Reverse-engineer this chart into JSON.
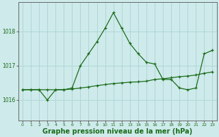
{
  "line1_x": [
    0,
    1,
    2,
    3,
    4,
    5,
    6,
    7,
    8,
    9,
    10,
    11,
    12,
    13,
    14,
    15,
    16,
    17,
    18,
    19,
    20,
    21,
    22,
    23
  ],
  "line1_y": [
    1016.3,
    1016.3,
    1016.3,
    1016.0,
    1016.3,
    1016.3,
    1016.35,
    1017.0,
    1017.35,
    1017.7,
    1018.1,
    1018.55,
    1018.1,
    1017.65,
    1017.35,
    1017.1,
    1017.05,
    1016.6,
    1016.6,
    1016.35,
    1016.3,
    1016.35,
    1017.35,
    1017.45
  ],
  "line2_x": [
    0,
    1,
    2,
    3,
    4,
    5,
    6,
    7,
    8,
    9,
    10,
    11,
    12,
    13,
    14,
    15,
    16,
    17,
    18,
    19,
    20,
    21,
    22,
    23
  ],
  "line2_y": [
    1016.3,
    1016.3,
    1016.3,
    1016.3,
    1016.3,
    1016.3,
    1016.32,
    1016.35,
    1016.38,
    1016.42,
    1016.45,
    1016.48,
    1016.5,
    1016.52,
    1016.53,
    1016.55,
    1016.6,
    1016.62,
    1016.65,
    1016.68,
    1016.7,
    1016.73,
    1016.78,
    1016.82
  ],
  "line_color": "#1a6b1a",
  "bg_color": "#ceeaea",
  "grid_color": "#aad4d4",
  "ylabel_ticks": [
    1016,
    1017,
    1018
  ],
  "xlim": [
    -0.5,
    23.5
  ],
  "ylim": [
    1015.4,
    1018.85
  ],
  "xlabel": "Graphe pression niveau de la mer (hPa)",
  "xlabel_fontsize": 7.0
}
